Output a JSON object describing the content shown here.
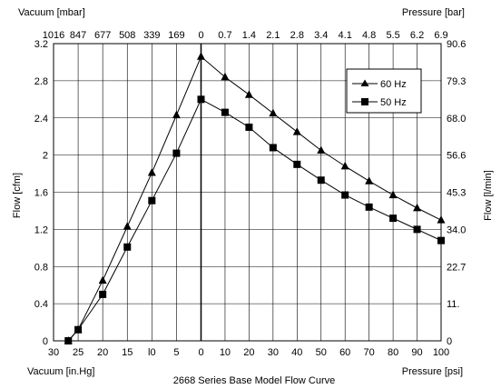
{
  "chart_data": {
    "type": "line",
    "title": "2668 Series Base Model Flow Curve",
    "top_left_label": "Vacuum [mbar]",
    "top_right_label": "Pressure [bar]",
    "bottom_left_label": "Vacuum [in.Hg]",
    "bottom_right_label": "Pressure [psi]",
    "ylabel_left": "Flow [cfm]",
    "ylabel_right": "Flow [l/min]",
    "grid": true,
    "legend_position": "top-right",
    "x_axis": {
      "unit": "position",
      "ticks": [
        {
          "pos": -30,
          "label": "30"
        },
        {
          "pos": -25,
          "label": "25"
        },
        {
          "pos": -20,
          "label": "20"
        },
        {
          "pos": -15,
          "label": "15"
        },
        {
          "pos": -10,
          "label": "l0"
        },
        {
          "pos": -5,
          "label": "5"
        },
        {
          "pos": 0,
          "label": "0"
        },
        {
          "pos": 10,
          "label": "10"
        },
        {
          "pos": 20,
          "label": "20"
        },
        {
          "pos": 30,
          "label": "30"
        },
        {
          "pos": 40,
          "label": "40"
        },
        {
          "pos": 50,
          "label": "50"
        },
        {
          "pos": 60,
          "label": "60"
        },
        {
          "pos": 70,
          "label": "70"
        },
        {
          "pos": 80,
          "label": "80"
        },
        {
          "pos": 90,
          "label": "90"
        },
        {
          "pos": 100,
          "label": "100"
        }
      ],
      "top_ticks": [
        {
          "pos": -30,
          "label": "1016"
        },
        {
          "pos": -25,
          "label": "847"
        },
        {
          "pos": -20,
          "label": "677"
        },
        {
          "pos": -15,
          "label": "508"
        },
        {
          "pos": -10,
          "label": "339"
        },
        {
          "pos": -5,
          "label": "169"
        },
        {
          "pos": 0,
          "label": "0"
        },
        {
          "pos": 10,
          "label": "0.7"
        },
        {
          "pos": 20,
          "label": "1.4"
        },
        {
          "pos": 30,
          "label": "2.1"
        },
        {
          "pos": 40,
          "label": "2.8"
        },
        {
          "pos": 50,
          "label": "3.4"
        },
        {
          "pos": 60,
          "label": "4.1"
        },
        {
          "pos": 70,
          "label": "4.8"
        },
        {
          "pos": 80,
          "label": "5.5"
        },
        {
          "pos": 90,
          "label": "6.2"
        },
        {
          "pos": 100,
          "label": "6.9"
        }
      ]
    },
    "ylim": [
      0,
      3.2
    ],
    "y_ticks": [
      {
        "value": 0,
        "label": "0"
      },
      {
        "value": 0.4,
        "label": "0.4"
      },
      {
        "value": 0.8,
        "label": "0.8"
      },
      {
        "value": 1.2,
        "label": "1.2"
      },
      {
        "value": 1.6,
        "label": "1.6"
      },
      {
        "value": 2.0,
        "label": "2"
      },
      {
        "value": 2.4,
        "label": "2.4"
      },
      {
        "value": 2.8,
        "label": "2.8"
      },
      {
        "value": 3.2,
        "label": "3.2"
      }
    ],
    "y_right_ticks": [
      {
        "value": 0,
        "label": "0"
      },
      {
        "value": 0.4,
        "label": "11."
      },
      {
        "value": 0.8,
        "label": "22.7"
      },
      {
        "value": 1.2,
        "label": "34.0"
      },
      {
        "value": 1.6,
        "label": "45.3"
      },
      {
        "value": 2.0,
        "label": "56.6"
      },
      {
        "value": 2.4,
        "label": "68.0"
      },
      {
        "value": 2.8,
        "label": "79.3"
      },
      {
        "value": 3.2,
        "label": "90.6"
      }
    ],
    "series": [
      {
        "name": "60 Hz",
        "marker": "triangle",
        "points": [
          [
            -27,
            0.0
          ],
          [
            -25,
            0.12
          ],
          [
            -20,
            0.65
          ],
          [
            -15,
            1.23
          ],
          [
            -10,
            1.81
          ],
          [
            -5,
            2.43
          ],
          [
            0,
            3.06
          ],
          [
            10,
            2.84
          ],
          [
            20,
            2.65
          ],
          [
            30,
            2.45
          ],
          [
            40,
            2.25
          ],
          [
            50,
            2.05
          ],
          [
            60,
            1.88
          ],
          [
            70,
            1.72
          ],
          [
            80,
            1.57
          ],
          [
            90,
            1.43
          ],
          [
            100,
            1.3
          ]
        ]
      },
      {
        "name": "50 Hz",
        "marker": "square",
        "points": [
          [
            -27,
            0.0
          ],
          [
            -25,
            0.12
          ],
          [
            -20,
            0.5
          ],
          [
            -15,
            1.01
          ],
          [
            -10,
            1.51
          ],
          [
            -5,
            2.02
          ],
          [
            0,
            2.6
          ],
          [
            10,
            2.46
          ],
          [
            20,
            2.3
          ],
          [
            30,
            2.08
          ],
          [
            40,
            1.9
          ],
          [
            50,
            1.73
          ],
          [
            60,
            1.57
          ],
          [
            70,
            1.44
          ],
          [
            80,
            1.32
          ],
          [
            90,
            1.2
          ],
          [
            100,
            1.08
          ]
        ]
      }
    ]
  }
}
